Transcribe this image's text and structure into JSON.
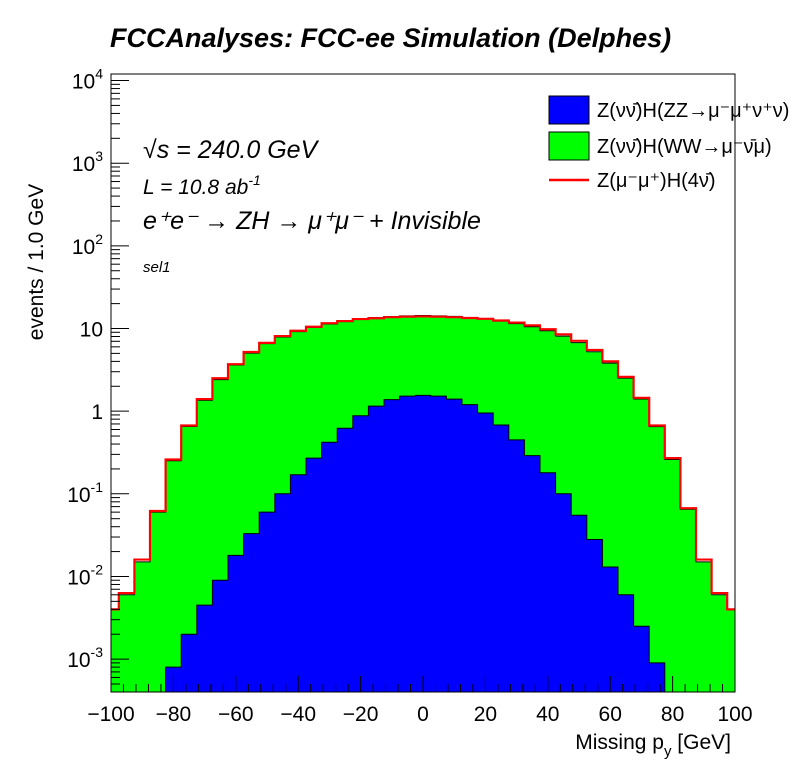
{
  "chart_data": {
    "type": "area",
    "title": "FCCAnalyses: FCC-ee Simulation (Delphes)",
    "xlabel": "Missing p",
    "xlabel_sub": "y",
    "xlabel_unit": " [GeV]",
    "ylabel": "events / 1.0 GeV",
    "xlim": [
      -100,
      100
    ],
    "ylim": [
      0.0004,
      12000
    ],
    "yscale": "log",
    "grid": false,
    "legend_position": "top-right",
    "annotations": {
      "sqrt": "√s",
      "energy": " = 240.0 GeV",
      "lumi_base": "L = 10.8 ab",
      "lumi_exp": "-1",
      "process": "e⁺e⁻ → ZH → μ⁺μ⁻ + Invisible",
      "selection": "sel1"
    },
    "x_ticks": [
      "−100",
      "−80",
      "−60",
      "−40",
      "−20",
      "0",
      "20",
      "40",
      "60",
      "80",
      "100"
    ],
    "y_ticks": [
      {
        "base": "10",
        "exp": "-3"
      },
      {
        "base": "10",
        "exp": "-2"
      },
      {
        "base": "10",
        "exp": "-1"
      },
      {
        "base": "1",
        "exp": ""
      },
      {
        "base": "10",
        "exp": ""
      },
      {
        "base": "10",
        "exp": "2"
      },
      {
        "base": "10",
        "exp": "3"
      },
      {
        "base": "10",
        "exp": "4"
      }
    ],
    "x": [
      -100,
      -95,
      -90,
      -85,
      -80,
      -75,
      -70,
      -65,
      -60,
      -55,
      -50,
      -45,
      -40,
      -35,
      -30,
      -25,
      -20,
      -15,
      -10,
      -5,
      0,
      5,
      10,
      15,
      20,
      25,
      30,
      35,
      40,
      45,
      50,
      55,
      60,
      65,
      70,
      75,
      80,
      85,
      90,
      95,
      100
    ],
    "series": [
      {
        "name": "Z(νν̄)H(ZZ→μ⁻μ⁺ν⁺ν)",
        "color": "#0000ff",
        "kind": "stacked-fill",
        "values": [
          0,
          0,
          0,
          0,
          0.0008,
          0.002,
          0.0045,
          0.009,
          0.018,
          0.033,
          0.06,
          0.1,
          0.17,
          0.27,
          0.42,
          0.62,
          0.88,
          1.15,
          1.38,
          1.52,
          1.55,
          1.52,
          1.4,
          1.2,
          0.95,
          0.68,
          0.45,
          0.29,
          0.18,
          0.1,
          0.055,
          0.028,
          0.013,
          0.006,
          0.0025,
          0.0009,
          0,
          0,
          0,
          0,
          0
        ]
      },
      {
        "name": "Z(νν̄)H(WW→μ⁻ν̄μ)",
        "color": "#00ff00",
        "kind": "stacked-fill",
        "values": [
          0.004,
          0.006,
          0.015,
          0.06,
          0.25,
          0.65,
          1.35,
          2.4,
          3.6,
          5.0,
          6.5,
          7.8,
          9.0,
          10.0,
          10.9,
          11.5,
          12.0,
          12.4,
          12.6,
          12.7,
          12.8,
          12.7,
          12.6,
          12.4,
          12.1,
          11.6,
          11.0,
          10.2,
          9.2,
          8.0,
          6.7,
          5.2,
          3.8,
          2.5,
          1.4,
          0.65,
          0.26,
          0.065,
          0.015,
          0.006,
          0.004
        ]
      },
      {
        "name": "Z(μ⁻μ⁺)H(4ν̄)",
        "color": "#ff0000",
        "kind": "line",
        "values": [
          0.004,
          0.0063,
          0.016,
          0.062,
          0.26,
          0.67,
          1.4,
          2.5,
          3.7,
          5.2,
          6.7,
          8.1,
          9.4,
          10.5,
          11.6,
          12.3,
          13.0,
          13.3,
          13.7,
          13.9,
          14.0,
          13.9,
          13.7,
          13.4,
          13.1,
          12.5,
          11.8,
          10.9,
          9.8,
          8.5,
          7.1,
          5.5,
          4.0,
          2.6,
          1.45,
          0.67,
          0.27,
          0.067,
          0.016,
          0.0063,
          0.004
        ]
      }
    ]
  }
}
